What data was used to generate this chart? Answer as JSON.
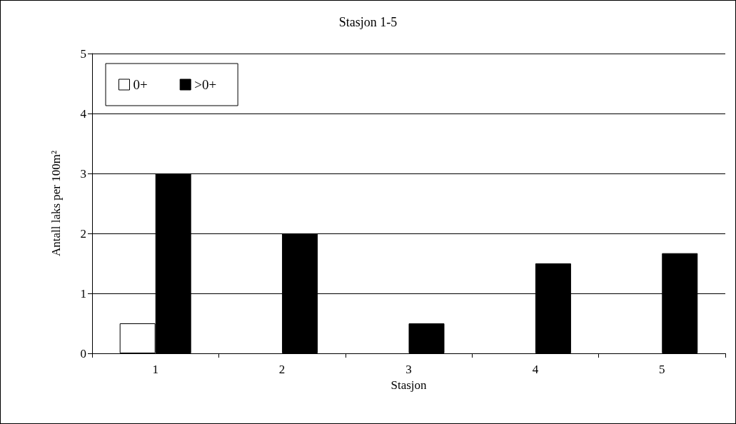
{
  "chart_data": {
    "type": "bar",
    "title": "Stasjon 1-5",
    "xlabel": "Stasjon",
    "ylabel": "Antall laks per 100m²",
    "categories": [
      "1",
      "2",
      "3",
      "4",
      "5"
    ],
    "series": [
      {
        "name": "0+",
        "color": "#ffffff",
        "values": [
          0.5,
          0,
          0,
          0,
          0
        ]
      },
      {
        "name": ">0+",
        "color": "#000000",
        "values": [
          3,
          2,
          0.5,
          1.5,
          1.67
        ]
      }
    ],
    "ylim": [
      0,
      5
    ],
    "yticks": [
      0,
      1,
      2,
      3,
      4,
      5
    ],
    "grid": "y",
    "legend": "top left"
  }
}
